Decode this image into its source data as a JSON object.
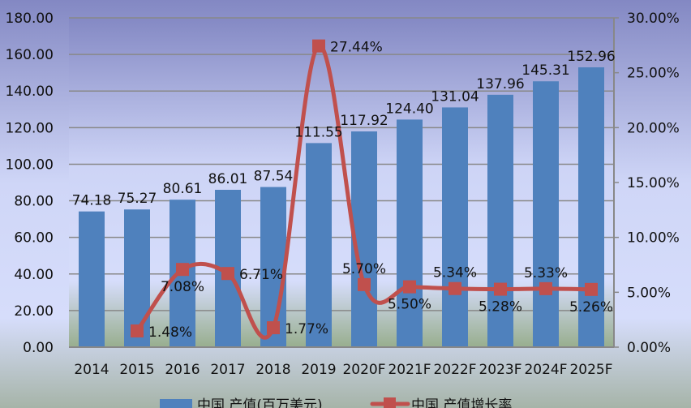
{
  "chart_data": {
    "type": "bar+line",
    "categories": [
      "2014",
      "2015",
      "2016",
      "2017",
      "2018",
      "2019",
      "2020F",
      "2021F",
      "2022F",
      "2023F",
      "2024F",
      "2025F"
    ],
    "series": [
      {
        "name": "中国 产值(百万美元)",
        "type": "bar",
        "axis": "left",
        "color": "#4f81bd",
        "values": [
          74.18,
          75.27,
          80.61,
          86.01,
          87.54,
          111.55,
          117.92,
          124.4,
          131.04,
          137.96,
          145.31,
          152.96
        ],
        "labels": [
          "74.18",
          "75.27",
          "80.61",
          "86.01",
          "87.54",
          "111.55",
          "117.92",
          "124.40",
          "131.04",
          "137.96",
          "145.31",
          "152.96"
        ]
      },
      {
        "name": "中国 产值增长率",
        "type": "line",
        "axis": "right",
        "color": "#c0504d",
        "smooth": true,
        "values": [
          null,
          1.48,
          7.08,
          6.71,
          1.77,
          27.44,
          5.7,
          5.5,
          5.34,
          5.28,
          5.33,
          5.26
        ],
        "labels": [
          "",
          "1.48%",
          "7.08%",
          "6.71%",
          "1.77%",
          "27.44%",
          "5.70%",
          "5.50%",
          "5.34%",
          "5.28%",
          "5.33%",
          "5.26%"
        ]
      }
    ],
    "y_left": {
      "range": [
        0,
        180
      ],
      "ticks": [
        "0.00",
        "20.00",
        "40.00",
        "60.00",
        "80.00",
        "100.00",
        "120.00",
        "140.00",
        "160.00",
        "180.00"
      ]
    },
    "y_right": {
      "range": [
        0,
        30
      ],
      "ticks": [
        "0.00%",
        "5.00%",
        "10.00%",
        "15.00%",
        "20.00%",
        "25.00%",
        "30.00%"
      ]
    },
    "grid": true,
    "legend": "bottom"
  }
}
